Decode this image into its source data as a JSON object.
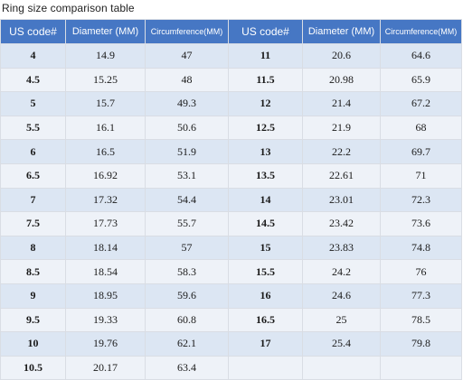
{
  "title": "Ring size comparison table",
  "headers": {
    "left": [
      "US code#",
      "Diameter (MM)",
      "Circumference(MM)"
    ],
    "right": [
      "US code#",
      "Diameter (MM)",
      "Circumference(MM)"
    ]
  },
  "rows": [
    {
      "left": [
        "4",
        "14.9",
        "47"
      ],
      "right": [
        "11",
        "20.6",
        "64.6"
      ]
    },
    {
      "left": [
        "4.5",
        "15.25",
        "48"
      ],
      "right": [
        "11.5",
        "20.98",
        "65.9"
      ]
    },
    {
      "left": [
        "5",
        "15.7",
        "49.3"
      ],
      "right": [
        "12",
        "21.4",
        "67.2"
      ]
    },
    {
      "left": [
        "5.5",
        "16.1",
        "50.6"
      ],
      "right": [
        "12.5",
        "21.9",
        "68"
      ]
    },
    {
      "left": [
        "6",
        "16.5",
        "51.9"
      ],
      "right": [
        "13",
        "22.2",
        "69.7"
      ]
    },
    {
      "left": [
        "6.5",
        "16.92",
        "53.1"
      ],
      "right": [
        "13.5",
        "22.61",
        "71"
      ]
    },
    {
      "left": [
        "7",
        "17.32",
        "54.4"
      ],
      "right": [
        "14",
        "23.01",
        "72.3"
      ]
    },
    {
      "left": [
        "7.5",
        "17.73",
        "55.7"
      ],
      "right": [
        "14.5",
        "23.42",
        "73.6"
      ]
    },
    {
      "left": [
        "8",
        "18.14",
        "57"
      ],
      "right": [
        "15",
        "23.83",
        "74.8"
      ]
    },
    {
      "left": [
        "8.5",
        "18.54",
        "58.3"
      ],
      "right": [
        "15.5",
        "24.2",
        "76"
      ]
    },
    {
      "left": [
        "9",
        "18.95",
        "59.6"
      ],
      "right": [
        "16",
        "24.6",
        "77.3"
      ]
    },
    {
      "left": [
        "9.5",
        "19.33",
        "60.8"
      ],
      "right": [
        "16.5",
        "25",
        "78.5"
      ]
    },
    {
      "left": [
        "10",
        "19.76",
        "62.1"
      ],
      "right": [
        "17",
        "25.4",
        "79.8"
      ]
    },
    {
      "left": [
        "10.5",
        "20.17",
        "63.4"
      ],
      "right": []
    }
  ],
  "colors": {
    "header_bg": "#4677c4",
    "row_odd_bg": "#dce6f3",
    "row_even_bg": "#eef2f8"
  }
}
